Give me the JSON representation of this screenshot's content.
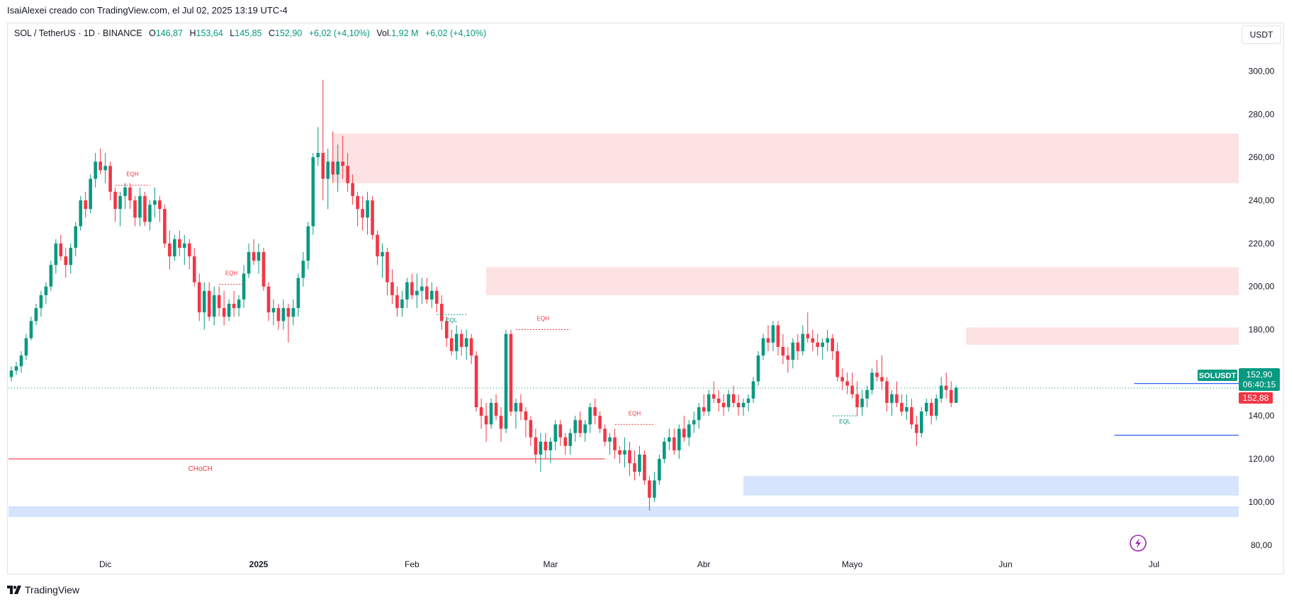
{
  "header": {
    "credit": "IsaiAlexei creado con TradingView.com, el Jul 02, 2025 13:19 UTC-4"
  },
  "legend": {
    "symbol": "SOL / TetherUS · 1D · BINANCE",
    "open_label": "O",
    "open": "146,87",
    "high_label": "H",
    "high": "153,64",
    "low_label": "L",
    "low": "145,85",
    "close_label": "C",
    "close": "152,90",
    "change": "+6,02 (+4,10%)",
    "vol_label": "Vol.",
    "vol": "1,92 M",
    "vol_change": "+6,02 (+4,10%)"
  },
  "currency_button": "USDT",
  "price_tags": {
    "symbol": "SOLUSDT",
    "last": "152,90",
    "countdown": "06:40:15",
    "bid": "152,88"
  },
  "brand": "TradingView",
  "colors": {
    "up": "#089981",
    "down": "#f23645",
    "supply_zone": "#fde2e3",
    "demand_zone": "#d6e4fd",
    "choch": "#f23645",
    "blue_line": "#2962ff"
  },
  "chart_data": {
    "type": "candlestick",
    "timeframe": "1D",
    "ylim": [
      75,
      310
    ],
    "y_ticks": [
      80,
      100,
      120,
      140,
      160,
      180,
      200,
      220,
      240,
      260,
      280,
      300
    ],
    "y_tick_labels": [
      "80,00",
      "100,00",
      "120,00",
      "140,00",
      "160,00",
      "180,00",
      "200,00",
      "220,00",
      "240,00",
      "260,00",
      "280,00",
      "300,00"
    ],
    "x_labels": [
      {
        "label": "Dic",
        "index": 19,
        "bold": false
      },
      {
        "label": "2025",
        "index": 50,
        "bold": true
      },
      {
        "label": "Feb",
        "index": 81,
        "bold": false
      },
      {
        "label": "Mar",
        "index": 109,
        "bold": false
      },
      {
        "label": "Abr",
        "index": 140,
        "bold": false
      },
      {
        "label": "Mayo",
        "index": 170,
        "bold": false
      },
      {
        "label": "Jun",
        "index": 201,
        "bold": false
      },
      {
        "label": "Jul",
        "index": 231,
        "bold": false
      }
    ],
    "candles": [
      [
        158,
        163,
        156,
        161
      ],
      [
        161,
        165,
        159,
        163
      ],
      [
        163,
        170,
        160,
        168
      ],
      [
        168,
        178,
        166,
        176
      ],
      [
        176,
        186,
        175,
        184
      ],
      [
        184,
        192,
        182,
        190
      ],
      [
        190,
        198,
        186,
        196
      ],
      [
        196,
        202,
        192,
        200
      ],
      [
        200,
        212,
        198,
        210
      ],
      [
        210,
        222,
        206,
        220
      ],
      [
        220,
        224,
        212,
        214
      ],
      [
        214,
        218,
        204,
        210
      ],
      [
        210,
        220,
        206,
        218
      ],
      [
        218,
        230,
        214,
        228
      ],
      [
        228,
        242,
        226,
        240
      ],
      [
        240,
        244,
        232,
        236
      ],
      [
        236,
        252,
        234,
        250
      ],
      [
        250,
        262,
        246,
        258
      ],
      [
        258,
        264,
        252,
        254
      ],
      [
        254,
        262,
        248,
        256
      ],
      [
        256,
        258,
        240,
        244
      ],
      [
        244,
        246,
        230,
        236
      ],
      [
        236,
        244,
        228,
        242
      ],
      [
        242,
        248,
        236,
        246
      ],
      [
        246,
        248,
        236,
        240
      ],
      [
        240,
        242,
        228,
        232
      ],
      [
        232,
        246,
        228,
        242
      ],
      [
        242,
        244,
        228,
        230
      ],
      [
        230,
        240,
        226,
        238
      ],
      [
        238,
        246,
        232,
        240
      ],
      [
        240,
        242,
        230,
        236
      ],
      [
        236,
        238,
        218,
        220
      ],
      [
        220,
        226,
        208,
        214
      ],
      [
        214,
        224,
        212,
        222
      ],
      [
        222,
        226,
        214,
        218
      ],
      [
        218,
        224,
        210,
        220
      ],
      [
        220,
        222,
        208,
        214
      ],
      [
        214,
        218,
        200,
        202
      ],
      [
        202,
        206,
        184,
        188
      ],
      [
        188,
        202,
        180,
        198
      ],
      [
        198,
        202,
        184,
        186
      ],
      [
        186,
        200,
        182,
        196
      ],
      [
        196,
        200,
        186,
        190
      ],
      [
        190,
        198,
        182,
        186
      ],
      [
        186,
        194,
        184,
        192
      ],
      [
        192,
        198,
        186,
        190
      ],
      [
        190,
        196,
        186,
        194
      ],
      [
        194,
        210,
        190,
        206
      ],
      [
        206,
        220,
        204,
        216
      ],
      [
        216,
        222,
        210,
        212
      ],
      [
        212,
        220,
        206,
        216
      ],
      [
        216,
        218,
        198,
        200
      ],
      [
        200,
        202,
        184,
        188
      ],
      [
        188,
        194,
        182,
        190
      ],
      [
        190,
        192,
        180,
        184
      ],
      [
        184,
        194,
        180,
        190
      ],
      [
        190,
        192,
        174,
        186
      ],
      [
        186,
        194,
        182,
        190
      ],
      [
        190,
        206,
        186,
        204
      ],
      [
        204,
        216,
        200,
        212
      ],
      [
        212,
        230,
        208,
        228
      ],
      [
        228,
        262,
        224,
        260
      ],
      [
        260,
        274,
        256,
        262
      ],
      [
        262,
        296,
        240,
        250
      ],
      [
        250,
        264,
        236,
        258
      ],
      [
        258,
        272,
        248,
        252
      ],
      [
        252,
        266,
        244,
        258
      ],
      [
        258,
        270,
        250,
        256
      ],
      [
        256,
        262,
        244,
        248
      ],
      [
        248,
        252,
        238,
        242
      ],
      [
        242,
        244,
        228,
        236
      ],
      [
        236,
        242,
        226,
        232
      ],
      [
        232,
        244,
        224,
        240
      ],
      [
        240,
        242,
        222,
        224
      ],
      [
        224,
        226,
        210,
        214
      ],
      [
        214,
        220,
        204,
        216
      ],
      [
        216,
        218,
        196,
        202
      ],
      [
        202,
        208,
        192,
        196
      ],
      [
        196,
        200,
        186,
        190
      ],
      [
        190,
        198,
        186,
        194
      ],
      [
        194,
        204,
        190,
        202
      ],
      [
        202,
        206,
        194,
        196
      ],
      [
        196,
        206,
        190,
        198
      ],
      [
        198,
        204,
        192,
        200
      ],
      [
        200,
        204,
        192,
        194
      ],
      [
        194,
        202,
        190,
        198
      ],
      [
        198,
        200,
        188,
        192
      ],
      [
        192,
        196,
        180,
        184
      ],
      [
        184,
        186,
        172,
        176
      ],
      [
        176,
        180,
        168,
        170
      ],
      [
        170,
        182,
        166,
        178
      ],
      [
        178,
        180,
        168,
        172
      ],
      [
        172,
        180,
        166,
        176
      ],
      [
        176,
        178,
        164,
        168
      ],
      [
        168,
        170,
        142,
        144
      ],
      [
        144,
        148,
        134,
        140
      ],
      [
        140,
        146,
        128,
        136
      ],
      [
        136,
        148,
        134,
        146
      ],
      [
        146,
        150,
        138,
        140
      ],
      [
        140,
        144,
        128,
        134
      ],
      [
        134,
        180,
        132,
        178
      ],
      [
        178,
        180,
        140,
        142
      ],
      [
        142,
        148,
        134,
        146
      ],
      [
        146,
        150,
        138,
        142
      ],
      [
        142,
        144,
        130,
        138
      ],
      [
        138,
        140,
        126,
        130
      ],
      [
        130,
        134,
        118,
        122
      ],
      [
        122,
        132,
        114,
        128
      ],
      [
        128,
        132,
        120,
        124
      ],
      [
        124,
        130,
        118,
        128
      ],
      [
        128,
        138,
        124,
        136
      ],
      [
        136,
        138,
        126,
        130
      ],
      [
        130,
        132,
        122,
        126
      ],
      [
        126,
        134,
        122,
        132
      ],
      [
        132,
        140,
        128,
        138
      ],
      [
        138,
        142,
        130,
        132
      ],
      [
        132,
        138,
        128,
        136
      ],
      [
        136,
        146,
        132,
        144
      ],
      [
        144,
        148,
        136,
        140
      ],
      [
        140,
        142,
        132,
        134
      ],
      [
        134,
        136,
        126,
        128
      ],
      [
        128,
        132,
        122,
        130
      ],
      [
        130,
        134,
        120,
        124
      ],
      [
        124,
        126,
        118,
        122
      ],
      [
        122,
        130,
        116,
        124
      ],
      [
        124,
        128,
        112,
        118
      ],
      [
        118,
        124,
        110,
        114
      ],
      [
        114,
        126,
        112,
        122
      ],
      [
        122,
        124,
        108,
        110
      ],
      [
        110,
        112,
        96,
        102
      ],
      [
        102,
        114,
        100,
        110
      ],
      [
        110,
        122,
        108,
        120
      ],
      [
        120,
        130,
        118,
        128
      ],
      [
        128,
        134,
        124,
        130
      ],
      [
        130,
        134,
        122,
        124
      ],
      [
        124,
        136,
        120,
        134
      ],
      [
        134,
        140,
        128,
        130
      ],
      [
        130,
        138,
        126,
        136
      ],
      [
        136,
        142,
        132,
        138
      ],
      [
        138,
        146,
        134,
        144
      ],
      [
        144,
        150,
        140,
        142
      ],
      [
        142,
        152,
        140,
        150
      ],
      [
        150,
        156,
        146,
        148
      ],
      [
        148,
        152,
        142,
        146
      ],
      [
        146,
        150,
        140,
        144
      ],
      [
        144,
        152,
        142,
        150
      ],
      [
        150,
        154,
        144,
        146
      ],
      [
        146,
        150,
        140,
        144
      ],
      [
        144,
        148,
        140,
        146
      ],
      [
        146,
        150,
        142,
        148
      ],
      [
        148,
        158,
        146,
        156
      ],
      [
        156,
        170,
        154,
        168
      ],
      [
        168,
        178,
        166,
        176
      ],
      [
        176,
        182,
        170,
        174
      ],
      [
        174,
        184,
        170,
        182
      ],
      [
        182,
        184,
        168,
        172
      ],
      [
        172,
        178,
        164,
        168
      ],
      [
        168,
        172,
        160,
        166
      ],
      [
        166,
        176,
        162,
        174
      ],
      [
        174,
        178,
        166,
        170
      ],
      [
        170,
        182,
        168,
        178
      ],
      [
        178,
        188,
        174,
        176
      ],
      [
        176,
        180,
        170,
        174
      ],
      [
        174,
        178,
        168,
        172
      ],
      [
        172,
        176,
        166,
        174
      ],
      [
        174,
        180,
        170,
        176
      ],
      [
        176,
        178,
        166,
        170
      ],
      [
        170,
        174,
        156,
        158
      ],
      [
        158,
        162,
        152,
        156
      ],
      [
        156,
        160,
        150,
        154
      ],
      [
        154,
        160,
        148,
        150
      ],
      [
        150,
        156,
        140,
        144
      ],
      [
        144,
        152,
        140,
        148
      ],
      [
        148,
        154,
        144,
        152
      ],
      [
        152,
        162,
        150,
        160
      ],
      [
        160,
        166,
        156,
        158
      ],
      [
        158,
        168,
        152,
        156
      ],
      [
        156,
        158,
        142,
        146
      ],
      [
        146,
        152,
        140,
        150
      ],
      [
        150,
        156,
        144,
        146
      ],
      [
        146,
        150,
        140,
        142
      ],
      [
        142,
        150,
        138,
        144
      ],
      [
        144,
        148,
        134,
        136
      ],
      [
        136,
        140,
        126,
        132
      ],
      [
        132,
        144,
        130,
        142
      ],
      [
        142,
        148,
        140,
        146
      ],
      [
        146,
        148,
        136,
        140
      ],
      [
        140,
        150,
        138,
        148
      ],
      [
        148,
        158,
        146,
        154
      ],
      [
        154,
        160,
        148,
        152
      ],
      [
        152,
        156,
        144,
        146
      ],
      [
        146,
        154,
        146,
        153
      ]
    ],
    "zones": [
      {
        "kind": "supply",
        "start_index": 65,
        "end_index": 250,
        "top": 271,
        "bottom": 248
      },
      {
        "kind": "supply",
        "start_index": 96,
        "end_index": 250,
        "top": 209,
        "bottom": 196
      },
      {
        "kind": "supply",
        "start_index": 193,
        "end_index": 250,
        "top": 181,
        "bottom": 173
      },
      {
        "kind": "demand",
        "start_index": 148,
        "end_index": 250,
        "top": 112,
        "bottom": 103
      },
      {
        "kind": "demand",
        "start_index": -1,
        "end_index": 250,
        "top": 98,
        "bottom": 93
      }
    ],
    "levels": [
      {
        "kind": "choch",
        "label": "CHoCH",
        "start_index": -1,
        "end_index": 120,
        "price": 120
      },
      {
        "kind": "blue",
        "start_index": 223,
        "end_index": 249,
        "price": 131
      },
      {
        "kind": "blue",
        "start_index": 227,
        "end_index": 249,
        "price": 155
      }
    ],
    "annotations": [
      {
        "label": "EQH",
        "kind": "eqh",
        "start_index": 21,
        "end_index": 28,
        "price": 247
      },
      {
        "label": "EQH",
        "kind": "eqh",
        "start_index": 42,
        "end_index": 47,
        "price": 201
      },
      {
        "label": "EQL",
        "kind": "eql",
        "start_index": 86,
        "end_index": 92,
        "price": 187
      },
      {
        "label": "EQH",
        "kind": "eqh",
        "start_index": 102,
        "end_index": 113,
        "price": 180
      },
      {
        "label": "EQH",
        "kind": "eqh",
        "start_index": 122,
        "end_index": 130,
        "price": 136
      },
      {
        "label": "EQL",
        "kind": "eql",
        "start_index": 166,
        "end_index": 171,
        "price": 140
      }
    ],
    "last_price": 152.9,
    "bid_price": 152.88
  }
}
